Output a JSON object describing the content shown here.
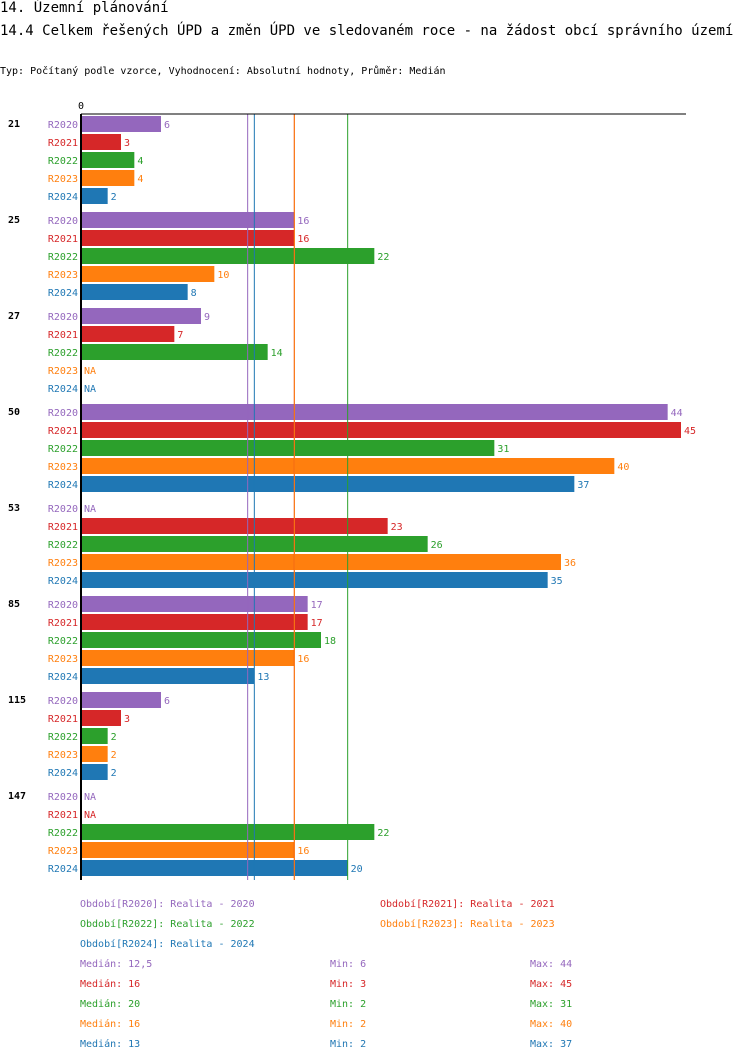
{
  "header": {
    "section": "14. Územní plánování",
    "title": "14.4 Celkem řešených ÚPD a změn ÚPD ve sledovaném roce - na žádost obcí správního území",
    "subtitle": "Typ: Počítaný podle vzorce, Vyhodnocení: Absolutní hodnoty, Průměr: Medián"
  },
  "chart_data": {
    "type": "bar",
    "orientation": "horizontal",
    "xlim": [
      0,
      45
    ],
    "zero_label": "0",
    "categories": [
      "21",
      "25",
      "27",
      "50",
      "53",
      "85",
      "115",
      "147"
    ],
    "series": [
      {
        "name": "R2020",
        "legend": "Období[R2020]: Realita - 2020",
        "color": "#9467bd",
        "values": [
          6,
          16,
          9,
          44,
          null,
          17,
          6,
          null
        ],
        "median": 12.5,
        "median_label": "Medián: 12,5",
        "min_label": "Min: 6",
        "max_label": "Max: 44"
      },
      {
        "name": "R2021",
        "legend": "Období[R2021]: Realita - 2021",
        "color": "#d62728",
        "values": [
          3,
          16,
          7,
          45,
          23,
          17,
          3,
          null
        ],
        "median": 16,
        "median_label": "Medián: 16",
        "min_label": "Min: 3",
        "max_label": "Max: 45"
      },
      {
        "name": "R2022",
        "legend": "Období[R2022]: Realita - 2022",
        "color": "#2ca02c",
        "values": [
          4,
          22,
          14,
          31,
          26,
          18,
          2,
          22
        ],
        "median": 20,
        "median_label": "Medián: 20",
        "min_label": "Min: 2",
        "max_label": "Max: 31"
      },
      {
        "name": "R2023",
        "legend": "Období[R2023]: Realita - 2023",
        "color": "#ff7f0e",
        "values": [
          4,
          10,
          null,
          40,
          36,
          16,
          2,
          16
        ],
        "median": 16,
        "median_label": "Medián: 16",
        "min_label": "Min: 2",
        "max_label": "Max: 40"
      },
      {
        "name": "R2024",
        "legend": "Období[R2024]: Realita - 2024",
        "color": "#1f77b4",
        "values": [
          2,
          8,
          null,
          37,
          35,
          13,
          2,
          20
        ],
        "median": 13,
        "median_label": "Medián: 13",
        "min_label": "Min: 2",
        "max_label": "Max: 37"
      }
    ],
    "na_label": "NA"
  }
}
